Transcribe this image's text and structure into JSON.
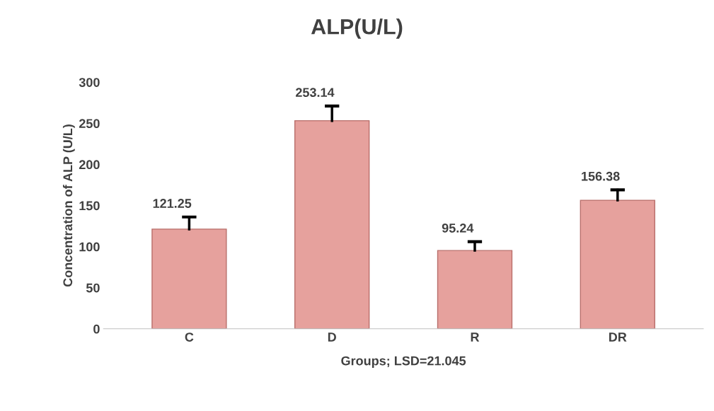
{
  "chart_data": {
    "type": "bar",
    "title": "ALP(U/L)",
    "xlabel": "Groups; LSD=21.045",
    "ylabel": "Concentration of ALP (U/L)",
    "categories": [
      "C",
      "D",
      "R",
      "DR"
    ],
    "values": [
      121.25,
      253.14,
      95.24,
      156.38
    ],
    "errors": [
      [
        121.25,
        136
      ],
      [
        253.14,
        271
      ],
      [
        95.24,
        106
      ],
      [
        156.38,
        169
      ]
    ],
    "color": "#e6a19d",
    "ylim": [
      0,
      300
    ],
    "yticks": [
      0,
      50,
      100,
      150,
      200,
      250,
      300
    ],
    "grid": false,
    "data_labels": true
  }
}
